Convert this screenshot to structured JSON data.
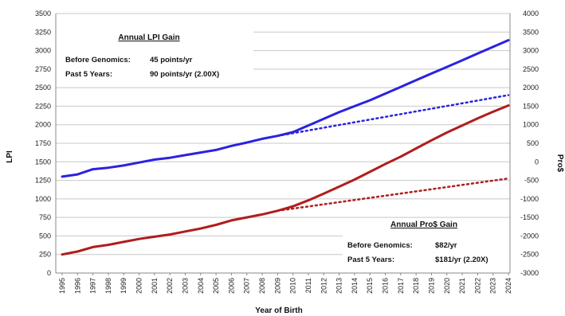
{
  "chart_data": {
    "type": "line",
    "title": "",
    "xlabel": "Year of Birth",
    "ylabel_left": "LPI",
    "ylabel_right": "Pro$",
    "x": [
      1995,
      1996,
      1997,
      1998,
      1999,
      2000,
      2001,
      2002,
      2003,
      2004,
      2005,
      2006,
      2007,
      2008,
      2009,
      2010,
      2011,
      2012,
      2013,
      2014,
      2015,
      2016,
      2017,
      2018,
      2019,
      2020,
      2021,
      2022,
      2023,
      2024
    ],
    "y_left_ticks": [
      "0",
      "250",
      "500",
      "750",
      "1000",
      "1250",
      "1500",
      "1750",
      "2000",
      "2250",
      "2500",
      "2750",
      "3000",
      "3250",
      "3500"
    ],
    "y_right_ticks": [
      "-3000",
      "-2500",
      "-2000",
      "-1500",
      "-1000",
      "-500",
      "0",
      "500",
      "1000",
      "1500",
      "2000",
      "2500",
      "3000",
      "3500",
      "4000"
    ],
    "ylim_left": [
      0,
      3500
    ],
    "ylim_right": [
      -3000,
      4000
    ],
    "series": [
      {
        "axis": "left",
        "color": "#2b22e0",
        "style": "solid",
        "x": [
          1995,
          1996,
          1997,
          1998,
          1999,
          2000,
          2001,
          2002,
          2003,
          2004,
          2005,
          2006,
          2007,
          2008,
          2009,
          2010,
          2011,
          2012,
          2013,
          2014,
          2015,
          2016,
          2017,
          2018,
          2019,
          2020,
          2021,
          2022,
          2023,
          2024
        ],
        "values": [
          1300,
          1330,
          1400,
          1420,
          1450,
          1490,
          1530,
          1555,
          1590,
          1625,
          1660,
          1715,
          1760,
          1810,
          1850,
          1900,
          1990,
          2080,
          2170,
          2250,
          2330,
          2420,
          2510,
          2600,
          2690,
          2780,
          2870,
          2960,
          3050,
          3140
        ]
      },
      {
        "axis": "left",
        "color": "#2b22e0",
        "style": "dotted",
        "x": [
          2009,
          2024
        ],
        "values": [
          1850,
          2400
        ]
      },
      {
        "axis": "right",
        "color": "#b01d1d",
        "style": "solid",
        "x": [
          1995,
          1996,
          1997,
          1998,
          1999,
          2000,
          2001,
          2002,
          2003,
          2004,
          2005,
          2006,
          2007,
          2008,
          2009,
          2010,
          2011,
          2012,
          2013,
          2014,
          2015,
          2016,
          2017,
          2018,
          2019,
          2020,
          2021,
          2022,
          2023,
          2024
        ],
        "values": [
          -2500,
          -2420,
          -2300,
          -2240,
          -2160,
          -2080,
          -2020,
          -1960,
          -1880,
          -1800,
          -1700,
          -1580,
          -1500,
          -1420,
          -1320,
          -1200,
          -1040,
          -860,
          -670,
          -480,
          -270,
          -60,
          140,
          360,
          580,
          790,
          980,
          1170,
          1350,
          1520
        ]
      },
      {
        "axis": "right",
        "color": "#b01d1d",
        "style": "dotted",
        "x": [
          2009,
          2024
        ],
        "values": [
          -1320,
          -450
        ]
      }
    ],
    "annotations": {
      "lpi": {
        "title": "Annual LPI Gain",
        "line1_label": "Before Genomics:",
        "line1_value": "45 points/yr",
        "line2_label": "Past 5 Years:",
        "line2_value": "90 points/yr (2.00X)"
      },
      "pro": {
        "title": "Annual Pro$ Gain",
        "line1_label": "Before Genomics:",
        "line1_value": "$82/yr",
        "line2_label": "Past 5 Years:",
        "line2_value": "$181/yr (2.20X)"
      }
    },
    "grid": true,
    "legend": "none"
  }
}
